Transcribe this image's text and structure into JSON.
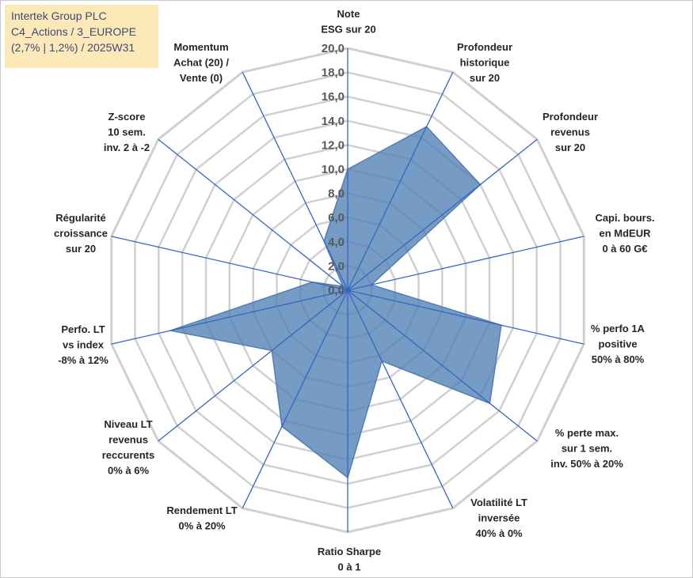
{
  "title": {
    "lines": [
      "Intertek Group PLC",
      "C4_Actions / 3_EUROPE",
      "(2,7% | 1,2%) / 2025W31"
    ]
  },
  "chart_data": {
    "type": "radar",
    "rmax": 20,
    "tick_labels": [
      "0,0",
      "2,0",
      "4,0",
      "6,0",
      "8,0",
      "10,0",
      "12,0",
      "14,0",
      "16,0",
      "18,0",
      "20,0"
    ],
    "axes": [
      {
        "label": [
          "Note",
          "ESG sur 20"
        ],
        "value": 10.0
      },
      {
        "label": [
          "Profondeur",
          "historique",
          "sur 20"
        ],
        "value": 15.0
      },
      {
        "label": [
          "Profondeur",
          "revenus",
          "sur 20"
        ],
        "value": 14.0
      },
      {
        "label": [
          "Capi. bours.",
          "en MdEUR",
          "0 à 60 G€"
        ],
        "value": 2.0
      },
      {
        "label": [
          "% perfo 1A",
          "positive",
          "50% à 80%"
        ],
        "value": 13.0
      },
      {
        "label": [
          "% perte max.",
          "sur 1 sem.",
          "inv. 50% à 20%"
        ],
        "value": 15.0
      },
      {
        "label": [
          "Volatilité LT",
          "inversée",
          "40% à 0%"
        ],
        "value": 6.5
      },
      {
        "label": [
          "Ratio Sharpe",
          "0 à 1"
        ],
        "value": 15.5
      },
      {
        "label": [
          "Rendement LT",
          "0% à 20%"
        ],
        "value": 12.5
      },
      {
        "label": [
          "Niveau LT",
          "revenus",
          "reccurents",
          "0% à 6%"
        ],
        "value": 8.0
      },
      {
        "label": [
          "Perfo. LT",
          "vs index",
          "-8% à 12%"
        ],
        "value": 15.0
      },
      {
        "label": [
          "Régularité",
          "croissance",
          "sur 20"
        ],
        "value": 3.0
      },
      {
        "label": [
          "Z-score",
          "10 sem.",
          "inv. 2 à -2"
        ],
        "value": 0.5
      },
      {
        "label": [
          "Momentum",
          "Achat (20) /",
          "Vente (0)"
        ],
        "value": 4.5
      }
    ],
    "colors": {
      "fill": "#4f7fb5",
      "line": "#2f6cc4",
      "grid": "#d0d0d0",
      "spoke": "#3566c0"
    }
  }
}
